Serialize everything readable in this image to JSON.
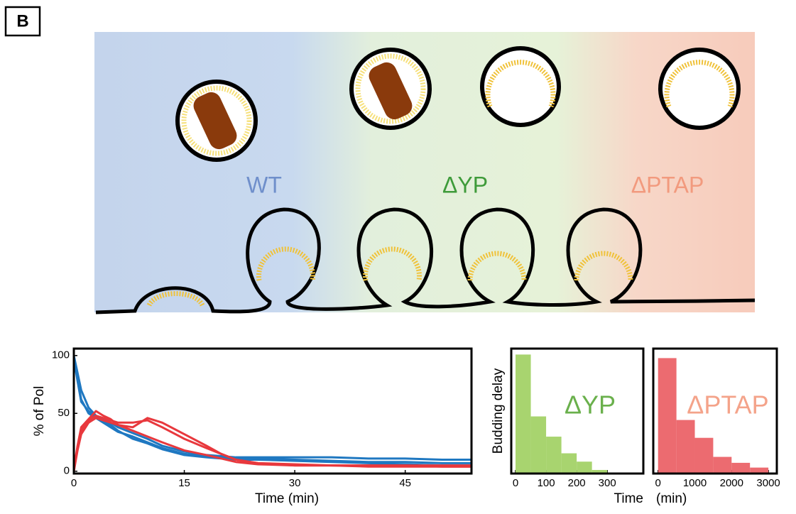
{
  "panel_label": "B",
  "illustration_labels": [
    {
      "text": "WT",
      "color": "#6f8fcb"
    },
    {
      "text": "ΔYP",
      "color": "#3e9b3a"
    },
    {
      "text": "ΔPTAP",
      "color": "#f29a7e"
    }
  ],
  "chart_data": [
    {
      "type": "line",
      "ylabel": "% of Pol",
      "xlabel": "Time  (min)",
      "xlim": [
        0,
        54
      ],
      "xticks": [
        0,
        15,
        30,
        45
      ],
      "ylim": [
        -2,
        106
      ],
      "yticks": [
        0,
        50,
        100
      ],
      "x": [
        0,
        0.5,
        1,
        2,
        3,
        4,
        5,
        6,
        8,
        10,
        12,
        15,
        18,
        20,
        22,
        25,
        30,
        35,
        40,
        45,
        50,
        54
      ],
      "series": [
        {
          "color": "#1f78c1",
          "values": [
            100,
            85,
            70,
            55,
            48,
            45,
            42,
            38,
            33,
            28,
            22,
            17,
            14,
            13,
            12,
            12,
            12,
            12,
            11,
            11,
            10,
            10
          ]
        },
        {
          "color": "#1f78c1",
          "values": [
            98,
            80,
            62,
            50,
            46,
            42,
            38,
            34,
            30,
            25,
            20,
            15,
            13,
            12,
            11,
            11,
            10,
            9,
            8,
            8,
            7,
            7
          ]
        },
        {
          "color": "#1f78c1",
          "values": [
            97,
            78,
            60,
            52,
            47,
            44,
            40,
            35,
            28,
            24,
            19,
            14,
            12,
            11,
            10,
            10,
            9,
            8,
            7,
            6,
            5,
            5
          ]
        },
        {
          "color": "#e8383d",
          "values": [
            0,
            20,
            35,
            44,
            48,
            46,
            44,
            42,
            42,
            44,
            38,
            28,
            20,
            15,
            10,
            7,
            6,
            5,
            5,
            5,
            5,
            5
          ]
        },
        {
          "color": "#e8383d",
          "values": [
            2,
            22,
            38,
            45,
            52,
            48,
            45,
            40,
            35,
            30,
            25,
            18,
            14,
            11,
            8,
            6,
            5,
            5,
            5,
            5,
            4,
            4
          ]
        },
        {
          "color": "#e8383d",
          "values": [
            0,
            18,
            32,
            42,
            46,
            44,
            42,
            40,
            38,
            46,
            42,
            32,
            22,
            15,
            10,
            7,
            5,
            5,
            4,
            4,
            4,
            4
          ]
        }
      ]
    },
    {
      "type": "histogram",
      "ylabel": "Budding delay",
      "xlabel": "Time",
      "annotation": "ΔYP",
      "annotation_color": "#6ab04c",
      "color": "#a8d46f",
      "xlim": [
        -14,
        418
      ],
      "xticks": [
        0,
        100,
        200,
        300
      ],
      "ylim": [
        0,
        1.05
      ],
      "bins": [
        0,
        50,
        100,
        150,
        200,
        250,
        300
      ],
      "values": [
        1.0,
        0.48,
        0.31,
        0.17,
        0.1,
        0.03
      ]
    },
    {
      "type": "histogram",
      "xlabel": "(min)",
      "annotation": "ΔPTAP",
      "annotation_color": "#f4a38a",
      "color": "#ec6b70",
      "xlim": [
        -130,
        3230
      ],
      "xticks": [
        0,
        1000,
        2000,
        3000
      ],
      "ylim": [
        0,
        1.05
      ],
      "bins": [
        0,
        500,
        1000,
        1500,
        2000,
        2500,
        3000
      ],
      "values": [
        0.97,
        0.45,
        0.3,
        0.14,
        0.09,
        0.05
      ]
    }
  ]
}
